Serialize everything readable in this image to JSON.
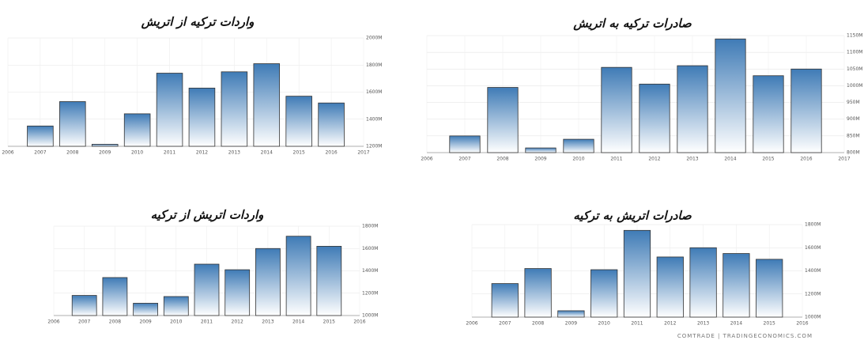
{
  "chart_data": [
    {
      "type": "bar",
      "title": "واردات ترکیه از اتریش",
      "x": [
        2007,
        2008,
        2009,
        2010,
        2011,
        2012,
        2013,
        2014,
        2015,
        2016
      ],
      "values": [
        1350,
        1530,
        1215,
        1440,
        1740,
        1630,
        1750,
        1810,
        1570,
        1520
      ],
      "color": "#3f7bb6",
      "xlim": [
        2006,
        2017
      ],
      "xticks": [
        2006,
        2007,
        2008,
        2009,
        2010,
        2011,
        2012,
        2013,
        2014,
        2015,
        2016,
        2017
      ],
      "ylim": [
        1200,
        2000
      ],
      "yticks": [
        {
          "value": 1200,
          "label": "1200M"
        },
        {
          "value": 1400,
          "label": "1400M"
        },
        {
          "value": 1600,
          "label": "1600M"
        },
        {
          "value": 1800,
          "label": "1800M"
        },
        {
          "value": 2000,
          "label": "2000M"
        }
      ],
      "grid": true
    },
    {
      "type": "bar",
      "title": "صادرات ترکیه به اتریش",
      "x": [
        2007,
        2008,
        2009,
        2010,
        2011,
        2012,
        2013,
        2014,
        2015,
        2016
      ],
      "values": [
        850,
        995,
        814,
        840,
        1055,
        1005,
        1060,
        1140,
        1030,
        1050
      ],
      "color": "#3f7bb6",
      "xlim": [
        2006,
        2017
      ],
      "xticks": [
        2006,
        2007,
        2008,
        2009,
        2010,
        2011,
        2012,
        2013,
        2014,
        2015,
        2016,
        2017
      ],
      "ylim": [
        800,
        1150
      ],
      "yticks": [
        {
          "value": 800,
          "label": "800M"
        },
        {
          "value": 850,
          "label": "850M"
        },
        {
          "value": 900,
          "label": "900M"
        },
        {
          "value": 950,
          "label": "950M"
        },
        {
          "value": 1000,
          "label": "1000M"
        },
        {
          "value": 1050,
          "label": "1050M"
        },
        {
          "value": 1100,
          "label": "1100M"
        },
        {
          "value": 1150,
          "label": "1150M"
        }
      ],
      "grid": true
    },
    {
      "type": "bar",
      "title": "واردات اتریش از ترکیه",
      "x": [
        2007,
        2008,
        2009,
        2010,
        2011,
        2012,
        2013,
        2014,
        2015
      ],
      "values": [
        1180,
        1340,
        1110,
        1170,
        1460,
        1410,
        1600,
        1710,
        1620
      ],
      "color": "#3f7bb6",
      "xlim": [
        2006,
        2016
      ],
      "xticks": [
        2006,
        2007,
        2008,
        2009,
        2010,
        2011,
        2012,
        2013,
        2014,
        2015,
        2016
      ],
      "ylim": [
        1000,
        1800
      ],
      "yticks": [
        {
          "value": 1000,
          "label": "1000M"
        },
        {
          "value": 1200,
          "label": "1200M"
        },
        {
          "value": 1400,
          "label": "1400M"
        },
        {
          "value": 1600,
          "label": "1600M"
        },
        {
          "value": 1800,
          "label": "1800M"
        }
      ],
      "grid": true
    },
    {
      "type": "bar",
      "title": "صادرات اتریش به ترکیه",
      "x": [
        2007,
        2008,
        2009,
        2010,
        2011,
        2012,
        2013,
        2014,
        2015
      ],
      "values": [
        1290,
        1420,
        1055,
        1410,
        1750,
        1520,
        1600,
        1550,
        1500
      ],
      "color": "#3f7bb6",
      "xlim": [
        2006,
        2016
      ],
      "xticks": [
        2006,
        2007,
        2008,
        2009,
        2010,
        2011,
        2012,
        2013,
        2014,
        2015,
        2016
      ],
      "ylim": [
        1000,
        1800
      ],
      "yticks": [
        {
          "value": 1000,
          "label": "1000M"
        },
        {
          "value": 1200,
          "label": "1200M"
        },
        {
          "value": 1400,
          "label": "1400M"
        },
        {
          "value": 1600,
          "label": "1600M"
        },
        {
          "value": 1800,
          "label": "1800M"
        }
      ],
      "grid": true
    }
  ],
  "source": "COMTRADE | TRADINGECONOMICS.COM"
}
